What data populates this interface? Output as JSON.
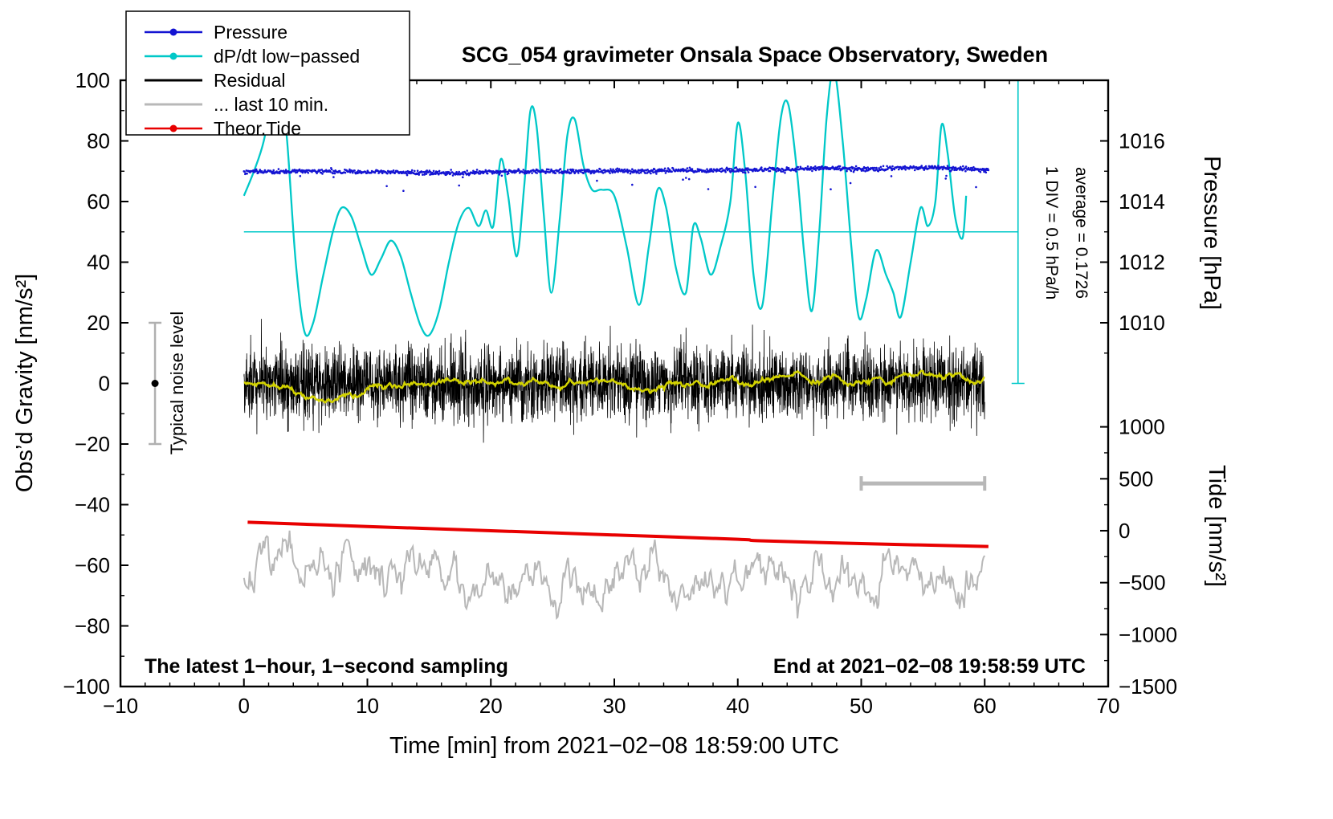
{
  "page": {
    "background": "#ffffff"
  },
  "chart_data": {
    "type": "line",
    "title": "SCG_054 gravimeter Onsala Space Observatory, Sweden",
    "xlabel": "Time [min] from 2021−02−08 18:59:00 UTC",
    "ylabel_left": "Obs’d Gravity [nm/s²]",
    "ylabel_pressure": "Pressure [hPa]",
    "ylabel_tide": "Tide [nm/s²]",
    "axes": {
      "xlim": [
        -10,
        70
      ],
      "ylim_left": [
        -100,
        100
      ],
      "x_ticks": [
        -10,
        0,
        10,
        20,
        30,
        40,
        50,
        60,
        70
      ],
      "x_minor_step": 2,
      "y_ticks_left": [
        -100,
        -80,
        -60,
        -40,
        -20,
        0,
        20,
        40,
        60,
        80,
        100
      ],
      "y_minor_step": 10,
      "pressure_ticks": [
        1010,
        1012,
        1014,
        1016
      ],
      "pressure_minor_ticks": [
        1009,
        1011,
        1013,
        1015,
        1017
      ],
      "tide_ticks": [
        -1500,
        -1000,
        -500,
        0,
        500,
        1000
      ],
      "tide_minor_ticks": [
        -1250,
        -750,
        -250,
        250,
        750
      ],
      "pressure_map": {
        "hpa_at_gravity0": 1008,
        "gravity_per_hpa": 10
      },
      "tide_map": {
        "gravity_at_zero": -48.6,
        "gravity_per_unit": 0.034267
      },
      "dpdt_map": {
        "gravity_at_average": 50,
        "average_hpa_per_h": 0.1726,
        "hpa_per_h_per_div": 0.5,
        "gravity_per_div": 20
      }
    },
    "legend": {
      "items": [
        {
          "label": "Pressure",
          "color": "#1414d2",
          "marker": true
        },
        {
          "label": "dP/dt low−passed",
          "color": "#00c8c8",
          "marker": true
        },
        {
          "label": "Residual",
          "color": "#000000",
          "marker": false
        },
        {
          "label": "... last 10 min.",
          "color": "#b8b8b8",
          "marker": false
        },
        {
          "label": "Theor.Tide",
          "color": "#e80000",
          "marker": true
        }
      ]
    },
    "annotations": {
      "div_scale": "1 DIV = 0.5 hPa/h",
      "average": "average = 0.1726",
      "noise_label": "Typical noise level",
      "noise_bar": {
        "x_min": -7.2,
        "g_range": [
          -20,
          20
        ]
      },
      "sampling_note": "The latest 1−hour, 1−second sampling",
      "end_note": "End at 2021−02−08 19:58:59 UTC",
      "avg_line": {
        "g": 50,
        "x_range": [
          0,
          62.7
        ]
      },
      "dpdt_scalebar": {
        "x": 62.7,
        "g_range": [
          0,
          100
        ]
      },
      "last10_scalebar": {
        "x_range": [
          50,
          60
        ],
        "g": -33
      }
    },
    "series": {
      "pressure": {
        "label": "Pressure",
        "color": "#1414d2",
        "units": "hPa",
        "x_range": [
          0,
          60.3
        ],
        "n": 1205,
        "seed": 101,
        "noise_sd_hpa": 0.035,
        "outlier_rate": 0.016,
        "outlier_max_hpa": 0.85,
        "baseline": [
          [
            0,
            1014.99
          ],
          [
            6,
            1015.0
          ],
          [
            12,
            1014.97
          ],
          [
            16,
            1014.93
          ],
          [
            20,
            1014.97
          ],
          [
            24,
            1015.0
          ],
          [
            28,
            1015.0
          ],
          [
            32,
            1015.01
          ],
          [
            36,
            1015.02
          ],
          [
            40,
            1015.04
          ],
          [
            44,
            1015.06
          ],
          [
            47,
            1015.1
          ],
          [
            50,
            1015.07
          ],
          [
            53,
            1015.1
          ],
          [
            56,
            1015.12
          ],
          [
            58,
            1015.08
          ],
          [
            60.3,
            1015.05
          ]
        ]
      },
      "dpdt": {
        "label": "dP/dt low−passed",
        "color": "#00c8c8",
        "units": "hPa/h",
        "points": [
          [
            0,
            0.47
          ],
          [
            0.8,
            0.67
          ],
          [
            1.6,
            0.92
          ],
          [
            2.4,
            1.35
          ],
          [
            2.9,
            1.47
          ],
          [
            3.5,
            0.92
          ],
          [
            4.2,
            -0.08
          ],
          [
            4.9,
            -0.65
          ],
          [
            5.6,
            -0.58
          ],
          [
            6.4,
            -0.2
          ],
          [
            7.2,
            0.17
          ],
          [
            7.9,
            0.37
          ],
          [
            8.7,
            0.3
          ],
          [
            9.5,
            0.05
          ],
          [
            10.3,
            -0.18
          ],
          [
            11.1,
            -0.05
          ],
          [
            11.9,
            0.1
          ],
          [
            12.7,
            -0.03
          ],
          [
            13.5,
            -0.33
          ],
          [
            14.3,
            -0.6
          ],
          [
            15,
            -0.68
          ],
          [
            15.8,
            -0.48
          ],
          [
            16.6,
            -0.08
          ],
          [
            17.4,
            0.25
          ],
          [
            18.2,
            0.37
          ],
          [
            19,
            0.22
          ],
          [
            19.6,
            0.35
          ],
          [
            20.2,
            0.22
          ],
          [
            20.8,
            0.77
          ],
          [
            21.4,
            0.47
          ],
          [
            22.1,
            -0.03
          ],
          [
            22.7,
            0.55
          ],
          [
            23.2,
            1.17
          ],
          [
            23.7,
            1.05
          ],
          [
            24.3,
            0.3
          ],
          [
            24.9,
            -0.33
          ],
          [
            25.6,
            0.3
          ],
          [
            26.2,
            0.97
          ],
          [
            26.8,
            1.1
          ],
          [
            27.5,
            0.72
          ],
          [
            28.2,
            0.52
          ],
          [
            29,
            0.52
          ],
          [
            30,
            0.47
          ],
          [
            31,
            0.05
          ],
          [
            32,
            -0.43
          ],
          [
            32.8,
            0.05
          ],
          [
            33.5,
            0.52
          ],
          [
            34.2,
            0.37
          ],
          [
            35,
            -0.13
          ],
          [
            35.8,
            -0.33
          ],
          [
            36.4,
            0.22
          ],
          [
            37,
            0.12
          ],
          [
            37.8,
            -0.18
          ],
          [
            38.6,
            0.05
          ],
          [
            39.4,
            0.42
          ],
          [
            40,
            1.07
          ],
          [
            40.6,
            0.67
          ],
          [
            41.3,
            -0.2
          ],
          [
            42,
            -0.43
          ],
          [
            42.8,
            0.42
          ],
          [
            43.5,
            1.12
          ],
          [
            44.1,
            1.22
          ],
          [
            44.8,
            0.67
          ],
          [
            45.4,
            -0.03
          ],
          [
            46,
            -0.48
          ],
          [
            46.6,
            0.17
          ],
          [
            47.2,
            1.12
          ],
          [
            47.8,
            1.5
          ],
          [
            48.5,
            0.92
          ],
          [
            49.2,
            0.05
          ],
          [
            49.8,
            -0.53
          ],
          [
            50.4,
            -0.38
          ],
          [
            51.2,
            0.02
          ],
          [
            52,
            -0.18
          ],
          [
            52.6,
            -0.33
          ],
          [
            53.2,
            -0.53
          ],
          [
            54,
            -0.08
          ],
          [
            54.8,
            0.37
          ],
          [
            55.4,
            0.22
          ],
          [
            56,
            0.42
          ],
          [
            56.5,
            1.05
          ],
          [
            57,
            0.82
          ],
          [
            57.6,
            0.3
          ],
          [
            58.2,
            0.12
          ],
          [
            58.5,
            0.47
          ]
        ]
      },
      "residual": {
        "label": "Residual",
        "color": "#000000",
        "units": "nm/s²",
        "x_range": [
          0,
          60
        ],
        "n": 3600,
        "seed": 42,
        "mean": 0,
        "sigma": 6
      },
      "residual_smoothed": {
        "label": "Residual smoothed",
        "color": "#d2d200",
        "x_range": [
          0,
          60
        ],
        "n": 900,
        "seed": 11,
        "ar": 0.985,
        "sigma": 0.35
      },
      "last10": {
        "label": "... last 10 min.",
        "color": "#b8b8b8",
        "x_range": [
          0,
          60
        ],
        "n": 650,
        "seed": 7,
        "ar": 0.86,
        "sigma": 2.6,
        "offset_g": -63
      },
      "tide": {
        "label": "Theor.Tide",
        "color": "#e80000",
        "units": "nm/s²",
        "points": [
          [
            0.3,
            82
          ],
          [
            10,
            41
          ],
          [
            20,
            0
          ],
          [
            30,
            -41
          ],
          [
            40,
            -82
          ],
          [
            41.8,
            -97
          ],
          [
            50,
            -124
          ],
          [
            60.3,
            -152
          ]
        ]
      }
    }
  }
}
